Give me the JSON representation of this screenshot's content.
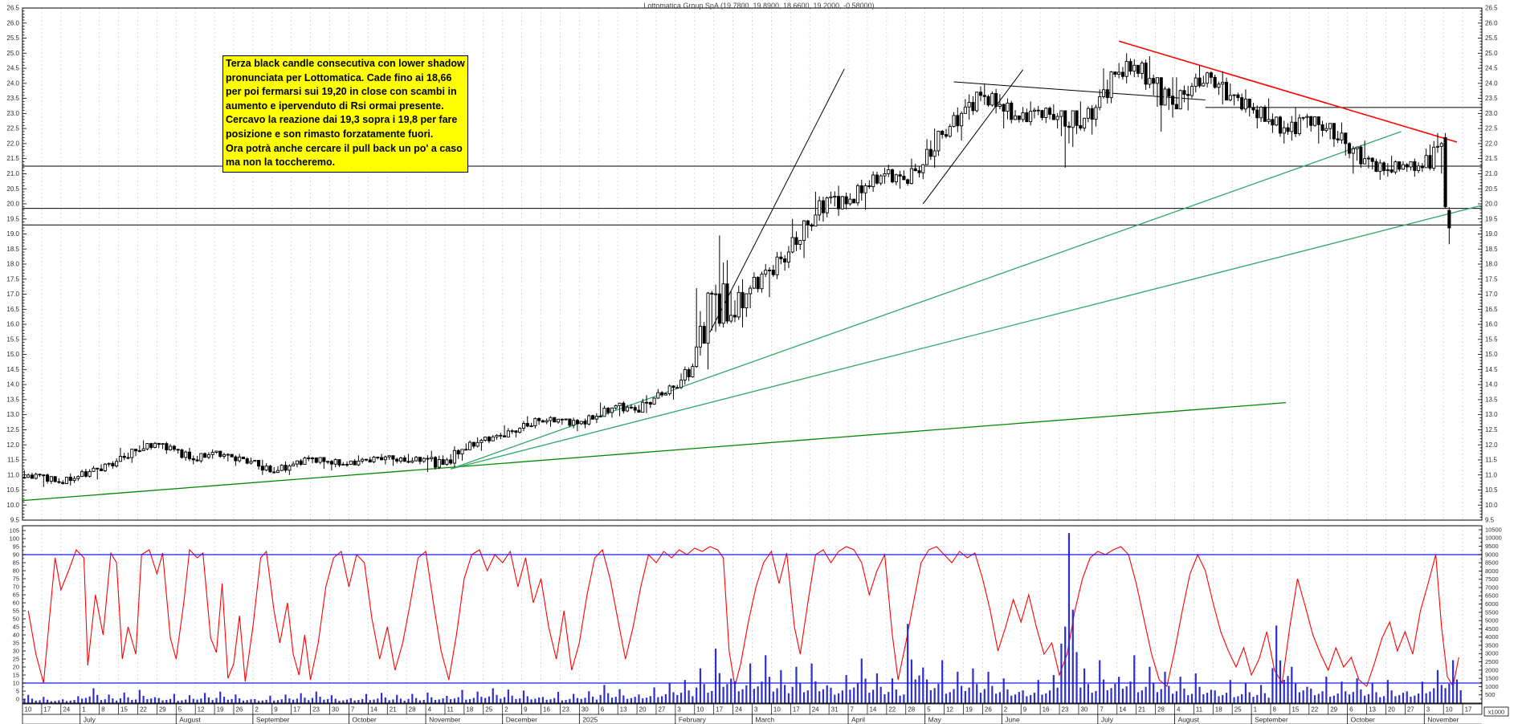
{
  "title": "Lottomatica Group SpA (19.7800, 19.8900, 18.6600, 19.2000, -0.58000)",
  "annotation": {
    "bg": "#ffff00",
    "border": "#000000",
    "lines": [
      "Terza black candle consecutiva con lower shadow",
      "pronunciata per Lottomatica. Cade fino ai 18,66",
      "per poi fermarsi sui 19,20 in close con scambi in",
      "aumento e ipervenduto di Rsi ormai presente.",
      "Cercavo la reazione dai 19,3 sopra i 19,8 per fare",
      "posizione e son rimasto forzatamente fuori.",
      "Ora potrà anche cercare il pull back un po' a caso",
      "ma non la toccheremo."
    ]
  },
  "chart_data": {
    "type": "candlestick",
    "title": "Lottomatica Group SpA (19.7800, 19.8900, 18.6600, 19.2000, -0.58000)",
    "last_quote": {
      "open": 19.78,
      "high": 19.89,
      "low": 18.66,
      "close": 19.2,
      "change": -0.58
    },
    "price_axis": {
      "min": 9.5,
      "max": 26.5,
      "step": 0.5,
      "minor": 0.1
    },
    "rsi_axis": {
      "min": 0,
      "max": 105,
      "step": 5
    },
    "volume_axis": {
      "min": 0,
      "max": 10500,
      "step": 500,
      "unit_label": "x1000"
    },
    "rsi_guides": [
      90,
      10
    ],
    "legend_position": "none",
    "grid": "weekly-vertical-dashed",
    "weeks": [
      "10",
      "17",
      "24",
      "1",
      "8",
      "15",
      "22",
      "29",
      "5",
      "12",
      "19",
      "26",
      "2",
      "9",
      "17",
      "23",
      "30",
      "7",
      "14",
      "21",
      "28",
      "4",
      "11",
      "18",
      "25",
      "2",
      "9",
      "16",
      "23",
      "30",
      "6",
      "13",
      "20",
      "27",
      "3",
      "10",
      "17",
      "24",
      "3",
      "10",
      "17",
      "24",
      "31",
      "7",
      "14",
      "22",
      "28",
      "5",
      "12",
      "19",
      "26",
      "2",
      "9",
      "16",
      "23",
      "30",
      "7",
      "14",
      "21",
      "28",
      "4",
      "11",
      "18",
      "25",
      "1",
      "8",
      "15",
      "22",
      "29",
      "6",
      "13",
      "20",
      "27",
      "3",
      "10",
      "17"
    ],
    "months": [
      {
        "label": "",
        "start": 0
      },
      {
        "label": "July",
        "start": 3
      },
      {
        "label": "August",
        "start": 8
      },
      {
        "label": "September",
        "start": 12
      },
      {
        "label": "October",
        "start": 17
      },
      {
        "label": "November",
        "start": 21
      },
      {
        "label": "December",
        "start": 25
      },
      {
        "label": "2025",
        "start": 29
      },
      {
        "label": "February",
        "start": 34
      },
      {
        "label": "March",
        "start": 38
      },
      {
        "label": "April",
        "start": 43
      },
      {
        "label": "May",
        "start": 47
      },
      {
        "label": "June",
        "start": 51
      },
      {
        "label": "July",
        "start": 56
      },
      {
        "label": "August",
        "start": 60
      },
      {
        "label": "September",
        "start": 64
      },
      {
        "label": "October",
        "start": 69
      },
      {
        "label": "November",
        "start": 73
      }
    ],
    "first_open": 10.9,
    "weekly_hlc": [
      [
        11.15,
        10.85,
        11.0
      ],
      [
        11.05,
        10.6,
        10.75
      ],
      [
        11.05,
        10.65,
        10.95
      ],
      [
        11.3,
        10.85,
        11.2
      ],
      [
        11.55,
        11.1,
        11.45
      ],
      [
        11.9,
        11.4,
        11.8
      ],
      [
        12.15,
        11.75,
        12.05
      ],
      [
        12.1,
        11.7,
        11.85
      ],
      [
        11.9,
        11.35,
        11.5
      ],
      [
        11.85,
        11.4,
        11.75
      ],
      [
        11.8,
        11.45,
        11.6
      ],
      [
        11.7,
        11.3,
        11.45
      ],
      [
        11.5,
        11.0,
        11.1
      ],
      [
        11.45,
        11.0,
        11.3
      ],
      [
        11.65,
        11.25,
        11.55
      ],
      [
        11.6,
        11.2,
        11.45
      ],
      [
        11.55,
        11.15,
        11.35
      ],
      [
        11.65,
        11.3,
        11.5
      ],
      [
        11.7,
        11.35,
        11.6
      ],
      [
        11.65,
        11.3,
        11.45
      ],
      [
        11.7,
        11.35,
        11.55
      ],
      [
        11.8,
        11.1,
        11.35
      ],
      [
        11.95,
        11.25,
        11.85
      ],
      [
        12.25,
        11.8,
        12.15
      ],
      [
        12.4,
        12.05,
        12.3
      ],
      [
        12.65,
        12.25,
        12.55
      ],
      [
        12.95,
        12.45,
        12.8
      ],
      [
        12.95,
        12.6,
        12.85
      ],
      [
        12.9,
        12.45,
        12.7
      ],
      [
        13.05,
        12.55,
        12.95
      ],
      [
        13.4,
        12.9,
        13.3
      ],
      [
        13.45,
        12.95,
        13.15
      ],
      [
        13.65,
        13.05,
        13.55
      ],
      [
        14.0,
        13.5,
        13.9
      ],
      [
        14.7,
        13.85,
        14.6
      ],
      [
        17.2,
        14.5,
        17.0
      ],
      [
        18.95,
        15.75,
        16.3
      ],
      [
        17.5,
        15.9,
        17.2
      ],
      [
        18.0,
        16.9,
        17.8
      ],
      [
        18.6,
        17.5,
        18.4
      ],
      [
        19.5,
        18.2,
        19.3
      ],
      [
        20.4,
        19.1,
        20.2
      ],
      [
        20.6,
        19.6,
        20.0
      ],
      [
        20.8,
        19.8,
        20.6
      ],
      [
        21.2,
        20.4,
        21.0
      ],
      [
        21.3,
        20.5,
        20.8
      ],
      [
        21.5,
        20.6,
        21.3
      ],
      [
        22.5,
        21.2,
        22.3
      ],
      [
        23.2,
        22.1,
        23.0
      ],
      [
        23.9,
        22.8,
        23.6
      ],
      [
        24.0,
        23.0,
        23.3
      ],
      [
        23.5,
        22.5,
        22.8
      ],
      [
        23.4,
        22.6,
        23.1
      ],
      [
        23.3,
        22.5,
        22.9
      ],
      [
        23.1,
        21.2,
        22.6
      ],
      [
        23.4,
        22.3,
        23.2
      ],
      [
        24.5,
        23.1,
        24.3
      ],
      [
        25.0,
        24.0,
        24.6
      ],
      [
        24.9,
        23.6,
        24.0
      ],
      [
        24.2,
        22.4,
        23.3
      ],
      [
        24.2,
        23.1,
        23.9
      ],
      [
        24.6,
        23.7,
        24.2
      ],
      [
        24.4,
        23.3,
        23.6
      ],
      [
        23.8,
        22.9,
        23.2
      ],
      [
        23.5,
        22.5,
        22.8
      ],
      [
        23.0,
        22.0,
        22.4
      ],
      [
        23.2,
        22.1,
        22.9
      ],
      [
        22.9,
        22.0,
        22.5
      ],
      [
        22.7,
        21.6,
        22.0
      ],
      [
        22.1,
        21.0,
        21.5
      ],
      [
        21.6,
        20.8,
        21.1
      ],
      [
        21.6,
        20.9,
        21.3
      ],
      [
        21.5,
        20.9,
        21.2
      ],
      [
        22.35,
        21.0,
        22.0
      ]
    ],
    "final_candles": [
      [
        22.2,
        22.35,
        19.85,
        19.9
      ],
      [
        19.78,
        19.89,
        18.66,
        19.2
      ]
    ],
    "volume_weekly": [
      500,
      380,
      420,
      900,
      520,
      640,
      800,
      560,
      480,
      620,
      700,
      520,
      450,
      520,
      600,
      700,
      480,
      550,
      620,
      500,
      560,
      640,
      800,
      700,
      900,
      820,
      760,
      680,
      560,
      720,
      1100,
      850,
      950,
      1200,
      1400,
      2100,
      3300,
      2400,
      2900,
      2000,
      2200,
      2400,
      1700,
      2700,
      1800,
      1500,
      4800,
      2600,
      1900,
      2100,
      1900,
      1500,
      1400,
      1700,
      10300,
      2100,
      2600,
      2900,
      2200,
      1900,
      1600,
      1800,
      1400,
      1200,
      1100,
      4700,
      2200,
      1600,
      1300,
      1500,
      1200,
      1400,
      1300,
      2000,
      2600
    ],
    "rsi_points": [
      [
        0,
        55
      ],
      [
        0.4,
        28
      ],
      [
        0.8,
        10
      ],
      [
        1.1,
        50
      ],
      [
        1.4,
        88
      ],
      [
        1.7,
        68
      ],
      [
        2.1,
        80
      ],
      [
        2.5,
        93
      ],
      [
        2.9,
        88
      ],
      [
        3.1,
        21
      ],
      [
        3.5,
        65
      ],
      [
        3.9,
        40
      ],
      [
        4.3,
        91
      ],
      [
        4.6,
        85
      ],
      [
        4.9,
        25
      ],
      [
        5.2,
        45
      ],
      [
        5.6,
        28
      ],
      [
        5.9,
        90
      ],
      [
        6.3,
        93
      ],
      [
        6.7,
        78
      ],
      [
        7.0,
        91
      ],
      [
        7.4,
        38
      ],
      [
        7.7,
        25
      ],
      [
        8.1,
        60
      ],
      [
        8.4,
        93
      ],
      [
        8.8,
        88
      ],
      [
        9.1,
        91
      ],
      [
        9.5,
        38
      ],
      [
        9.8,
        29
      ],
      [
        10.1,
        72
      ],
      [
        10.4,
        13
      ],
      [
        10.7,
        22
      ],
      [
        11.0,
        52
      ],
      [
        11.3,
        11
      ],
      [
        11.7,
        45
      ],
      [
        12.1,
        88
      ],
      [
        12.4,
        92
      ],
      [
        12.8,
        55
      ],
      [
        13.1,
        35
      ],
      [
        13.5,
        60
      ],
      [
        13.8,
        28
      ],
      [
        14.1,
        15
      ],
      [
        14.4,
        40
      ],
      [
        14.7,
        12
      ],
      [
        15.1,
        35
      ],
      [
        15.5,
        70
      ],
      [
        15.9,
        88
      ],
      [
        16.3,
        92
      ],
      [
        16.7,
        70
      ],
      [
        17.1,
        90
      ],
      [
        17.5,
        85
      ],
      [
        17.9,
        50
      ],
      [
        18.3,
        25
      ],
      [
        18.7,
        45
      ],
      [
        19.1,
        18
      ],
      [
        19.5,
        35
      ],
      [
        19.9,
        60
      ],
      [
        20.3,
        88
      ],
      [
        20.7,
        92
      ],
      [
        21.1,
        60
      ],
      [
        21.5,
        30
      ],
      [
        21.9,
        12
      ],
      [
        22.3,
        40
      ],
      [
        22.7,
        75
      ],
      [
        23.1,
        90
      ],
      [
        23.5,
        93
      ],
      [
        23.9,
        80
      ],
      [
        24.3,
        90
      ],
      [
        24.7,
        85
      ],
      [
        25.1,
        92
      ],
      [
        25.5,
        70
      ],
      [
        25.9,
        88
      ],
      [
        26.3,
        60
      ],
      [
        26.7,
        75
      ],
      [
        27.1,
        45
      ],
      [
        27.5,
        25
      ],
      [
        27.9,
        55
      ],
      [
        28.3,
        18
      ],
      [
        28.7,
        35
      ],
      [
        29.1,
        65
      ],
      [
        29.5,
        88
      ],
      [
        29.9,
        93
      ],
      [
        30.3,
        75
      ],
      [
        30.7,
        50
      ],
      [
        31.1,
        25
      ],
      [
        31.5,
        45
      ],
      [
        31.9,
        70
      ],
      [
        32.3,
        90
      ],
      [
        32.7,
        85
      ],
      [
        33.1,
        92
      ],
      [
        33.5,
        88
      ],
      [
        33.9,
        93
      ],
      [
        34.3,
        90
      ],
      [
        34.7,
        94
      ],
      [
        35.1,
        92
      ],
      [
        35.5,
        95
      ],
      [
        35.9,
        93
      ],
      [
        36.2,
        88
      ],
      [
        36.5,
        30
      ],
      [
        36.8,
        8
      ],
      [
        37.1,
        22
      ],
      [
        37.5,
        48
      ],
      [
        37.9,
        70
      ],
      [
        38.3,
        85
      ],
      [
        38.7,
        92
      ],
      [
        39.1,
        72
      ],
      [
        39.5,
        91
      ],
      [
        39.9,
        45
      ],
      [
        40.2,
        28
      ],
      [
        40.6,
        60
      ],
      [
        41.0,
        90
      ],
      [
        41.4,
        93
      ],
      [
        41.8,
        85
      ],
      [
        42.2,
        92
      ],
      [
        42.6,
        95
      ],
      [
        43.0,
        93
      ],
      [
        43.4,
        85
      ],
      [
        43.8,
        65
      ],
      [
        44.2,
        80
      ],
      [
        44.6,
        90
      ],
      [
        45.0,
        40
      ],
      [
        45.3,
        12
      ],
      [
        45.7,
        35
      ],
      [
        46.1,
        60
      ],
      [
        46.5,
        85
      ],
      [
        46.9,
        93
      ],
      [
        47.3,
        95
      ],
      [
        47.7,
        90
      ],
      [
        48.1,
        85
      ],
      [
        48.5,
        92
      ],
      [
        48.9,
        88
      ],
      [
        49.3,
        91
      ],
      [
        49.7,
        75
      ],
      [
        50.1,
        55
      ],
      [
        50.5,
        30
      ],
      [
        50.9,
        45
      ],
      [
        51.3,
        62
      ],
      [
        51.7,
        48
      ],
      [
        52.1,
        65
      ],
      [
        52.5,
        45
      ],
      [
        52.9,
        28
      ],
      [
        53.3,
        35
      ],
      [
        53.7,
        15
      ],
      [
        54.1,
        28
      ],
      [
        54.5,
        55
      ],
      [
        54.9,
        75
      ],
      [
        55.3,
        88
      ],
      [
        55.7,
        92
      ],
      [
        56.1,
        90
      ],
      [
        56.5,
        93
      ],
      [
        56.9,
        95
      ],
      [
        57.3,
        90
      ],
      [
        57.7,
        72
      ],
      [
        58.1,
        50
      ],
      [
        58.5,
        28
      ],
      [
        58.9,
        12
      ],
      [
        59.3,
        8
      ],
      [
        59.7,
        30
      ],
      [
        60.1,
        55
      ],
      [
        60.5,
        78
      ],
      [
        60.9,
        90
      ],
      [
        61.3,
        80
      ],
      [
        61.7,
        60
      ],
      [
        62.1,
        42
      ],
      [
        62.5,
        30
      ],
      [
        62.9,
        20
      ],
      [
        63.3,
        32
      ],
      [
        63.7,
        15
      ],
      [
        64.1,
        25
      ],
      [
        64.5,
        42
      ],
      [
        64.9,
        18
      ],
      [
        65.3,
        10
      ],
      [
        65.7,
        45
      ],
      [
        66.1,
        75
      ],
      [
        66.5,
        58
      ],
      [
        66.9,
        40
      ],
      [
        67.3,
        28
      ],
      [
        67.7,
        18
      ],
      [
        68.1,
        32
      ],
      [
        68.5,
        20
      ],
      [
        68.9,
        26
      ],
      [
        69.3,
        12
      ],
      [
        69.7,
        8
      ],
      [
        70.1,
        22
      ],
      [
        70.5,
        38
      ],
      [
        70.9,
        48
      ],
      [
        71.3,
        30
      ],
      [
        71.7,
        42
      ],
      [
        72.1,
        28
      ],
      [
        72.5,
        55
      ],
      [
        72.9,
        72
      ],
      [
        73.3,
        90
      ],
      [
        73.6,
        45
      ],
      [
        73.9,
        14
      ],
      [
        74.2,
        8
      ],
      [
        74.5,
        26
      ]
    ],
    "hlines": [
      {
        "price": 21.25,
        "w1": 0,
        "w2": 76
      },
      {
        "price": 19.85,
        "w1": 0,
        "w2": 76
      },
      {
        "price": 19.3,
        "w1": 0,
        "w2": 76
      },
      {
        "price": 23.2,
        "w1": 61.6,
        "w2": 76
      }
    ],
    "trendlines": [
      {
        "name": "long-term-support",
        "color": "#008800",
        "width": 1.3,
        "w1": 0,
        "p1": 10.15,
        "w2": 65.8,
        "p2": 13.4
      },
      {
        "name": "mid-support",
        "color": "#2fa868",
        "width": 1.3,
        "w1": 22.3,
        "p1": 11.2,
        "w2": 76,
        "p2": 19.95
      },
      {
        "name": "steep-support",
        "color": "#2fa868",
        "width": 1.3,
        "w1": 22.3,
        "p1": 11.2,
        "w2": 71.8,
        "p2": 22.4
      },
      {
        "name": "swing-line-1",
        "color": "#000000",
        "width": 1,
        "w1": 35.8,
        "p1": 15.74,
        "w2": 42.8,
        "p2": 24.48
      },
      {
        "name": "swing-line-2",
        "color": "#000000",
        "width": 1,
        "w1": 46.9,
        "p1": 20.0,
        "w2": 52.1,
        "p2": 24.45
      },
      {
        "name": "distribution-line",
        "color": "#000000",
        "width": 1,
        "w1": 48.5,
        "p1": 24.05,
        "w2": 61.6,
        "p2": 23.45
      },
      {
        "name": "red-resistance",
        "color": "#ff0000",
        "width": 1.6,
        "w1": 57.1,
        "p1": 25.4,
        "w2": 74.7,
        "p2": 22.05
      }
    ],
    "colors": {
      "up_candle": "#ffffff",
      "down_candle": "#000000",
      "candle_stroke": "#000000",
      "rsi_line": "#ff0000",
      "volume_bar": "#2e2ecc",
      "guide_line": "#1a1aff",
      "grid": "#d2d2d2",
      "axis_text": "#2b2b2b",
      "frame": "#000000"
    }
  }
}
